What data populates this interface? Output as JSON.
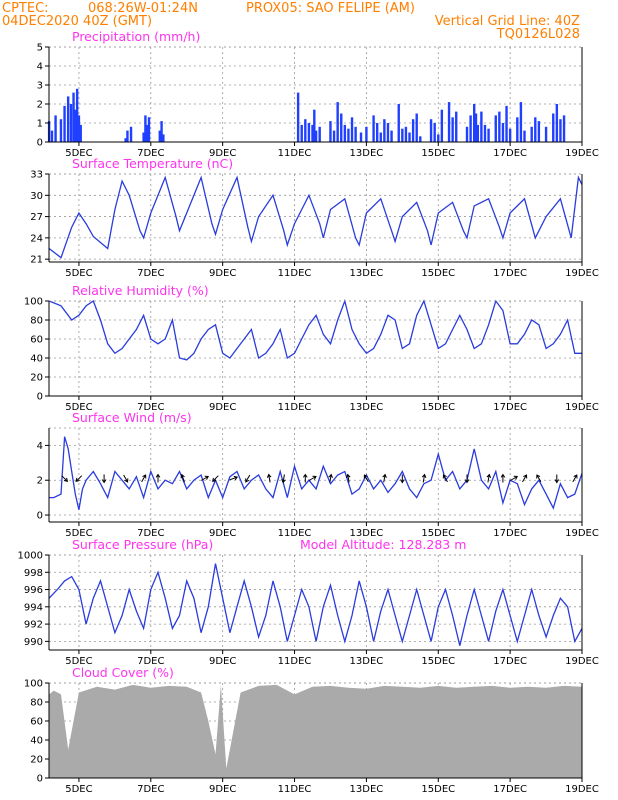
{
  "header": {
    "line1_left": "CPTEC:",
    "line1_coords": "068:26W-01:24N",
    "line1_station": "PROX05: SAO FELIPE (AM)",
    "line2_left": "04DEC2020 40Z (GMT)",
    "line2_right": "Vertical Grid Line: 40Z",
    "line3_right": "TQ0126L028"
  },
  "x_axis": {
    "tick_labels": [
      "5DEC",
      "7DEC",
      "9DEC",
      "11DEC",
      "13DEC",
      "15DEC",
      "17DEC",
      "19DEC"
    ],
    "tick_days": [
      5,
      7,
      9,
      11,
      13,
      15,
      17,
      19
    ],
    "start_day": 4.167,
    "end_day": 19.0
  },
  "colors": {
    "series": "#2a3cdd",
    "bars": "#2040ff",
    "cloud": "#aaaaaa",
    "titles": "#ff33ee",
    "header": "#ff7f00"
  },
  "chart_data": [
    {
      "type": "bar",
      "title": "Precipitation (mm/h)",
      "ylim": [
        0,
        5
      ],
      "yticks": [
        0,
        1,
        2,
        3,
        4,
        5
      ],
      "x_day": [
        4.17,
        4.25,
        4.35,
        4.5,
        4.6,
        4.7,
        4.78,
        4.85,
        4.9,
        4.95,
        5.0,
        5.05,
        6.3,
        6.35,
        6.45,
        6.8,
        6.85,
        6.9,
        6.95,
        7.25,
        7.3,
        7.35,
        11.1,
        11.2,
        11.3,
        11.4,
        11.5,
        11.55,
        11.6,
        11.7,
        12.0,
        12.1,
        12.2,
        12.3,
        12.4,
        12.5,
        12.6,
        12.7,
        12.85,
        13.0,
        13.2,
        13.3,
        13.4,
        13.5,
        13.6,
        13.7,
        13.9,
        14.0,
        14.1,
        14.2,
        14.3,
        14.4,
        14.5,
        14.8,
        14.9,
        15.0,
        15.1,
        15.3,
        15.4,
        15.5,
        15.8,
        15.9,
        16.0,
        16.05,
        16.1,
        16.2,
        16.3,
        16.4,
        16.6,
        16.7,
        16.8,
        16.9,
        17.0,
        17.2,
        17.3,
        17.4,
        17.6,
        17.7,
        17.8,
        18.0,
        18.2,
        18.3,
        18.4,
        18.5
      ],
      "values": [
        1.1,
        0.6,
        1.4,
        1.2,
        1.9,
        2.4,
        2.0,
        2.6,
        1.7,
        2.8,
        1.4,
        0.9,
        0.2,
        0.6,
        0.8,
        0.5,
        1.4,
        0.9,
        1.3,
        0.6,
        1.1,
        0.4,
        2.6,
        0.9,
        1.2,
        1.0,
        0.9,
        1.7,
        0.6,
        0.8,
        1.1,
        0.6,
        2.1,
        1.5,
        0.9,
        0.7,
        1.3,
        0.8,
        0.5,
        0.8,
        1.4,
        1.0,
        0.5,
        1.2,
        1.0,
        0.6,
        2.0,
        0.7,
        0.8,
        0.5,
        1.2,
        1.5,
        0.3,
        1.2,
        1.0,
        0.4,
        1.7,
        2.1,
        1.3,
        1.6,
        0.8,
        1.4,
        2.0,
        1.5,
        0.9,
        1.6,
        0.9,
        0.7,
        1.4,
        1.6,
        1.0,
        1.9,
        0.7,
        1.3,
        2.1,
        0.6,
        0.8,
        1.3,
        1.1,
        0.8,
        1.5,
        2.0,
        1.2,
        1.4
      ]
    },
    {
      "type": "line",
      "title": "Surface Temperature (nC)",
      "ylim": [
        20.6,
        33
      ],
      "yticks": [
        21,
        24,
        27,
        30,
        33
      ],
      "x_day": [
        4.17,
        4.5,
        4.8,
        5.0,
        5.2,
        5.4,
        5.8,
        6.0,
        6.2,
        6.4,
        6.7,
        6.8,
        7.0,
        7.4,
        7.7,
        7.8,
        8.0,
        8.4,
        8.7,
        8.8,
        9.0,
        9.4,
        9.7,
        9.8,
        10.0,
        10.4,
        10.7,
        10.8,
        11.0,
        11.4,
        11.7,
        11.8,
        12.0,
        12.4,
        12.7,
        12.8,
        13.0,
        13.4,
        13.7,
        13.8,
        14.0,
        14.4,
        14.7,
        14.8,
        15.0,
        15.4,
        15.7,
        15.8,
        16.0,
        16.4,
        16.7,
        16.8,
        17.0,
        17.4,
        17.7,
        17.8,
        18.0,
        18.4,
        18.7,
        18.9,
        19.0
      ],
      "values": [
        22.5,
        21.2,
        25.5,
        27.5,
        26.0,
        24.2,
        22.5,
        28.0,
        32.0,
        30.0,
        25.0,
        24.0,
        27.5,
        32.5,
        27.0,
        25.0,
        27.5,
        32.5,
        26.0,
        24.5,
        28.0,
        32.5,
        25.5,
        23.5,
        27.0,
        30.0,
        25.0,
        23.0,
        26.0,
        30.0,
        26.0,
        24.0,
        28.0,
        29.5,
        24.0,
        23.0,
        27.5,
        29.5,
        25.0,
        23.5,
        27.0,
        29.0,
        25.0,
        23.0,
        27.5,
        29.0,
        25.0,
        24.0,
        28.5,
        29.5,
        25.5,
        24.0,
        27.5,
        29.5,
        24.0,
        25.0,
        27.0,
        29.5,
        24.0,
        32.5,
        31.5
      ]
    },
    {
      "type": "line",
      "title": "Relative Humidity (%)",
      "ylim": [
        0,
        100
      ],
      "yticks": [
        0,
        20,
        40,
        60,
        80,
        100
      ],
      "x_day": [
        4.17,
        4.5,
        4.8,
        5.0,
        5.2,
        5.4,
        5.6,
        5.8,
        6.0,
        6.2,
        6.4,
        6.6,
        6.8,
        7.0,
        7.2,
        7.4,
        7.6,
        7.8,
        8.0,
        8.2,
        8.4,
        8.6,
        8.8,
        9.0,
        9.2,
        9.4,
        9.6,
        9.8,
        10.0,
        10.2,
        10.4,
        10.6,
        10.8,
        11.0,
        11.2,
        11.4,
        11.6,
        11.8,
        12.0,
        12.2,
        12.4,
        12.6,
        12.8,
        13.0,
        13.2,
        13.4,
        13.6,
        13.8,
        14.0,
        14.2,
        14.4,
        14.6,
        14.8,
        15.0,
        15.2,
        15.4,
        15.6,
        15.8,
        16.0,
        16.2,
        16.4,
        16.6,
        16.8,
        17.0,
        17.2,
        17.4,
        17.6,
        17.8,
        18.0,
        18.2,
        18.4,
        18.6,
        18.8,
        19.0
      ],
      "values": [
        100,
        95,
        80,
        85,
        95,
        100,
        80,
        55,
        45,
        50,
        60,
        70,
        85,
        60,
        55,
        60,
        80,
        40,
        38,
        45,
        60,
        70,
        75,
        45,
        40,
        50,
        60,
        70,
        40,
        45,
        55,
        70,
        40,
        45,
        60,
        75,
        85,
        65,
        55,
        80,
        100,
        70,
        55,
        45,
        50,
        65,
        85,
        80,
        50,
        55,
        85,
        100,
        75,
        50,
        55,
        70,
        85,
        70,
        50,
        55,
        75,
        100,
        90,
        55,
        55,
        65,
        80,
        75,
        50,
        55,
        65,
        80,
        45,
        45
      ]
    },
    {
      "type": "line",
      "title": "Surface Wind (m/s)",
      "ylim": [
        -0.4,
        5
      ],
      "yticks": [
        0,
        2,
        4
      ],
      "x_day": [
        4.17,
        4.3,
        4.5,
        4.6,
        4.7,
        4.8,
        4.9,
        5.0,
        5.1,
        5.2,
        5.4,
        5.6,
        5.8,
        6.0,
        6.2,
        6.4,
        6.6,
        6.8,
        7.0,
        7.2,
        7.4,
        7.6,
        7.8,
        8.0,
        8.2,
        8.4,
        8.6,
        8.8,
        9.0,
        9.2,
        9.4,
        9.6,
        9.8,
        10.0,
        10.2,
        10.4,
        10.6,
        10.8,
        11.0,
        11.2,
        11.4,
        11.6,
        11.8,
        12.0,
        12.2,
        12.4,
        12.6,
        12.8,
        13.0,
        13.2,
        13.4,
        13.6,
        13.8,
        14.0,
        14.2,
        14.4,
        14.6,
        14.8,
        15.0,
        15.2,
        15.4,
        15.6,
        15.8,
        16.0,
        16.2,
        16.4,
        16.6,
        16.8,
        17.0,
        17.2,
        17.4,
        17.6,
        17.8,
        18.0,
        18.2,
        18.4,
        18.6,
        18.8,
        19.0
      ],
      "values": [
        1.0,
        1.0,
        1.2,
        4.5,
        3.8,
        2.5,
        1.2,
        0.3,
        1.5,
        2.0,
        2.5,
        1.8,
        1.0,
        2.5,
        2.0,
        1.5,
        2.2,
        1.0,
        2.5,
        1.5,
        2.0,
        1.8,
        2.5,
        1.5,
        2.0,
        2.3,
        1.0,
        2.0,
        1.0,
        2.2,
        2.5,
        1.5,
        2.0,
        2.3,
        1.5,
        1.0,
        2.5,
        1.0,
        2.8,
        1.5,
        2.0,
        1.5,
        2.8,
        1.8,
        2.3,
        2.5,
        1.2,
        1.5,
        2.3,
        1.5,
        2.0,
        1.3,
        1.8,
        2.5,
        1.5,
        1.0,
        1.8,
        2.0,
        3.5,
        2.0,
        2.5,
        1.5,
        2.0,
        3.8,
        2.0,
        1.5,
        2.5,
        0.7,
        2.0,
        1.8,
        0.6,
        1.5,
        2.0,
        1.2,
        0.4,
        1.8,
        1.0,
        1.2,
        2.4
      ]
    },
    {
      "type": "line",
      "title": "Surface Pressure (hPa)",
      "annotation": "Model Altitude: 128.283 m",
      "ylim": [
        989,
        1000
      ],
      "yticks": [
        990,
        992,
        994,
        996,
        998,
        1000
      ],
      "x_day": [
        4.17,
        4.4,
        4.6,
        4.8,
        5.0,
        5.2,
        5.4,
        5.6,
        5.8,
        6.0,
        6.2,
        6.4,
        6.6,
        6.8,
        7.0,
        7.2,
        7.4,
        7.6,
        7.8,
        8.0,
        8.2,
        8.4,
        8.6,
        8.8,
        9.0,
        9.2,
        9.4,
        9.6,
        9.8,
        10.0,
        10.2,
        10.4,
        10.6,
        10.8,
        11.0,
        11.2,
        11.4,
        11.6,
        11.8,
        12.0,
        12.2,
        12.4,
        12.6,
        12.8,
        13.0,
        13.2,
        13.4,
        13.6,
        13.8,
        14.0,
        14.2,
        14.4,
        14.6,
        14.8,
        15.0,
        15.2,
        15.4,
        15.6,
        15.8,
        16.0,
        16.2,
        16.4,
        16.6,
        16.8,
        17.0,
        17.2,
        17.4,
        17.6,
        17.8,
        18.0,
        18.2,
        18.4,
        18.6,
        18.8,
        19.0
      ],
      "values": [
        995,
        996,
        997,
        997.5,
        996,
        992,
        995,
        997,
        994,
        991,
        993,
        996,
        993.5,
        991.5,
        996,
        998,
        995,
        991.5,
        993,
        997,
        995,
        991,
        994,
        999,
        995,
        991,
        994,
        997,
        994,
        990.5,
        993,
        997,
        994,
        990,
        993,
        996,
        994,
        990,
        994,
        996.5,
        993,
        990,
        993,
        997,
        994,
        990,
        993.5,
        996,
        993,
        990,
        993,
        996,
        993,
        990,
        994,
        996,
        993,
        989.5,
        993,
        996,
        993,
        990,
        993.5,
        996,
        993,
        990,
        993,
        996,
        993,
        990.5,
        993,
        995,
        994,
        990,
        991.5
      ]
    },
    {
      "type": "area",
      "title": "Cloud Cover (%)",
      "ylim": [
        0,
        100
      ],
      "yticks": [
        0,
        20,
        40,
        60,
        80,
        100
      ],
      "x_day": [
        4.17,
        4.3,
        4.5,
        4.7,
        5.0,
        5.5,
        6.0,
        6.5,
        7.0,
        7.5,
        8.0,
        8.4,
        8.6,
        8.8,
        8.95,
        9.1,
        9.5,
        10.0,
        10.5,
        11.0,
        11.5,
        12.0,
        12.5,
        13.0,
        13.5,
        14.0,
        14.5,
        15.0,
        15.5,
        16.0,
        16.5,
        17.0,
        17.5,
        18.0,
        18.5,
        19.0
      ],
      "values": [
        88,
        92,
        88,
        30,
        90,
        96,
        93,
        98,
        95,
        97,
        96,
        90,
        60,
        25,
        98,
        10,
        90,
        97,
        98,
        88,
        96,
        97,
        95,
        94,
        97,
        96,
        95,
        97,
        95,
        96,
        97,
        95,
        96,
        95,
        97,
        96
      ]
    }
  ],
  "wind_arrows": {
    "x_day": [
      4.6,
      5.0,
      5.7,
      6.3,
      6.8,
      7.2,
      7.9,
      8.5,
      8.8,
      9.3,
      9.7,
      10.3,
      10.7,
      11.3,
      11.5,
      12.0,
      12.5,
      13.0,
      13.5,
      14.0,
      14.6,
      15.2,
      15.8,
      16.4,
      16.8,
      17.1,
      17.4,
      17.8,
      18.3,
      18.8
    ],
    "direction_deg": [
      315,
      225,
      270,
      300,
      60,
      90,
      110,
      30,
      225,
      20,
      240,
      100,
      260,
      90,
      30,
      80,
      100,
      120,
      80,
      270,
      80,
      120,
      270,
      80,
      90,
      30,
      60,
      120,
      270,
      60
    ]
  }
}
